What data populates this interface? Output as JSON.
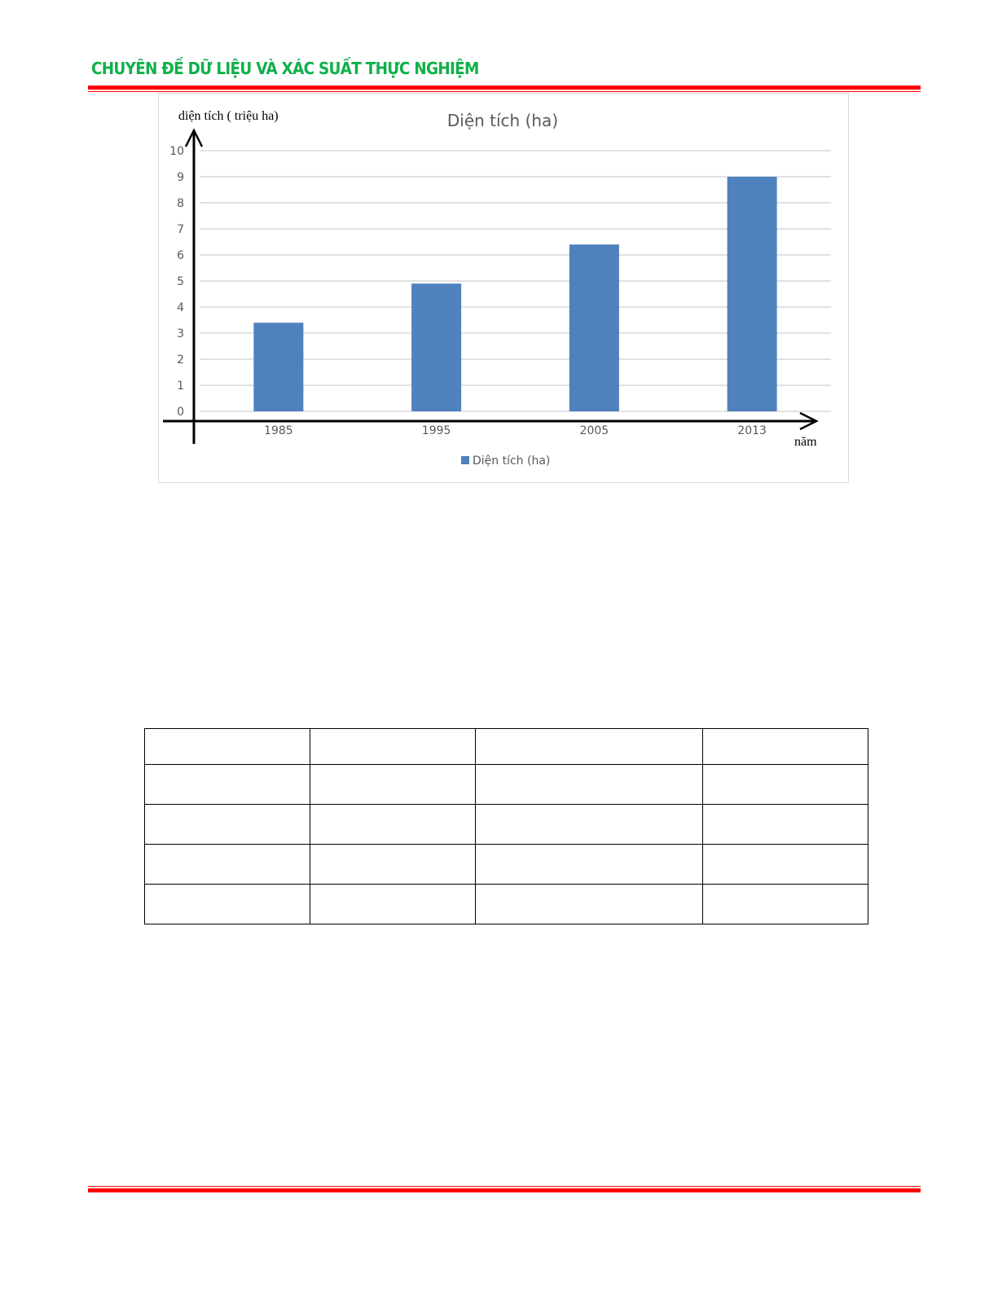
{
  "header": {
    "title": "CHUYÊN ĐỀ DỮ LIỆU VÀ XÁC SUẤT THỰC NGHIỆM"
  },
  "colors": {
    "header_text": "#10b04a",
    "rule": "#ff0000",
    "bar": "#4f81bd"
  },
  "chart_data": {
    "type": "bar",
    "title": "Diện tích (ha)",
    "ylabel": "diện tích ( triệu ha)",
    "xlabel": "năm",
    "categories": [
      "1985",
      "1995",
      "2005",
      "2013"
    ],
    "series": [
      {
        "name": "Diện tích (ha)",
        "values": [
          3.4,
          4.9,
          6.4,
          9.0
        ]
      }
    ],
    "ylim": [
      0,
      10
    ],
    "yticks": [
      "0",
      "1",
      "2",
      "3",
      "4",
      "5",
      "6",
      "7",
      "8",
      "9",
      "10"
    ],
    "grid": true,
    "legend": "bottom"
  },
  "table": {
    "rows": 5,
    "cols": 4
  }
}
